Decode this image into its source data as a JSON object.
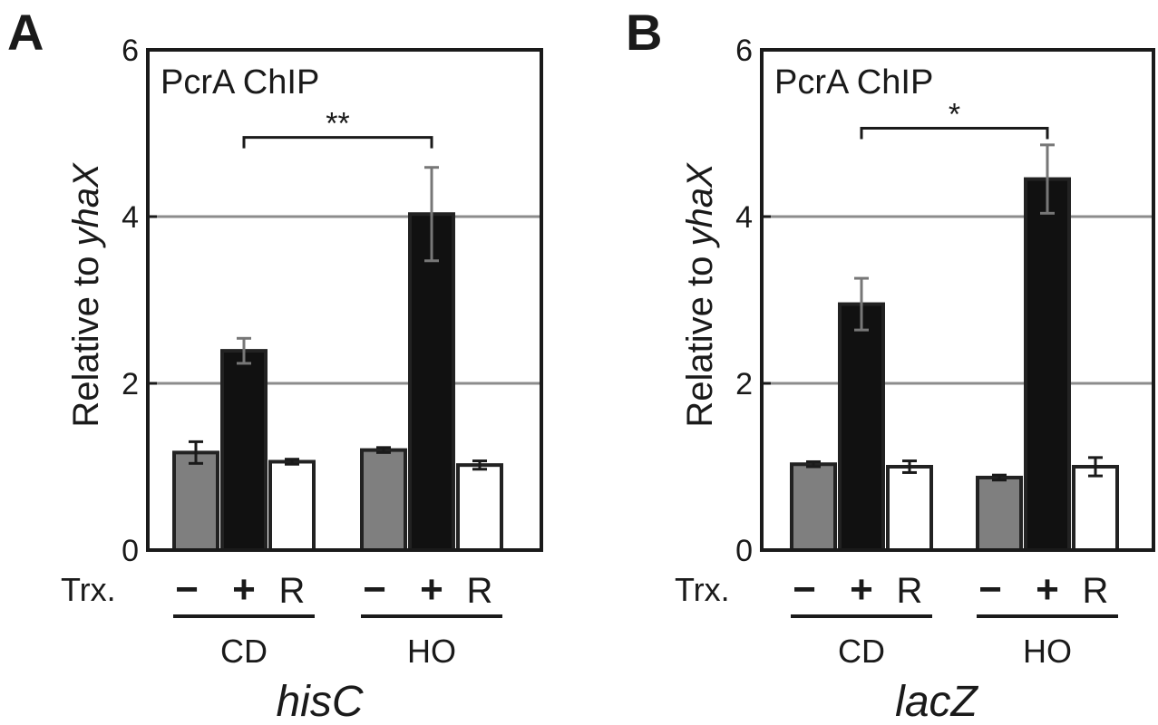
{
  "chart_data": [
    {
      "type": "bar",
      "panel_label": "A",
      "title": "PcrA ChIP",
      "ylabel_prefix": "Relative to ",
      "ylabel_italic": "yhaX",
      "ylim": [
        0,
        6
      ],
      "yticks": [
        "0",
        "2",
        "4",
        "6"
      ],
      "grid": [
        2,
        4
      ],
      "row_label": "Trx.",
      "conditions": [
        "−",
        "+",
        "R"
      ],
      "condition_colors": [
        "#7f7f7f",
        "#111111",
        "#ffffff"
      ],
      "groups": [
        {
          "name": "CD",
          "values": [
            1.17,
            2.39,
            1.06
          ],
          "errors": [
            0.13,
            0.15,
            0.03
          ]
        },
        {
          "name": "HO",
          "values": [
            1.2,
            4.03,
            1.02
          ],
          "errors": [
            0.03,
            0.56,
            0.05
          ]
        }
      ],
      "significance": {
        "from_group": 0,
        "to_group": 1,
        "condition": 1,
        "label": "**",
        "y": 4.95
      },
      "gene": "hisC"
    },
    {
      "type": "bar",
      "panel_label": "B",
      "title": "PcrA ChIP",
      "ylabel_prefix": "Relative to ",
      "ylabel_italic": "yhaX",
      "ylim": [
        0,
        6
      ],
      "yticks": [
        "0",
        "2",
        "4",
        "6"
      ],
      "grid": [
        2,
        4
      ],
      "row_label": "Trx.",
      "conditions": [
        "−",
        "+",
        "R"
      ],
      "condition_colors": [
        "#7f7f7f",
        "#111111",
        "#ffffff"
      ],
      "groups": [
        {
          "name": "CD",
          "values": [
            1.03,
            2.95,
            1.0
          ],
          "errors": [
            0.03,
            0.31,
            0.07
          ]
        },
        {
          "name": "HO",
          "values": [
            0.87,
            4.45,
            1.0
          ],
          "errors": [
            0.03,
            0.41,
            0.11
          ]
        }
      ],
      "significance": {
        "from_group": 0,
        "to_group": 1,
        "condition": 1,
        "label": "*",
        "y": 5.06
      },
      "gene": "lacZ"
    }
  ]
}
